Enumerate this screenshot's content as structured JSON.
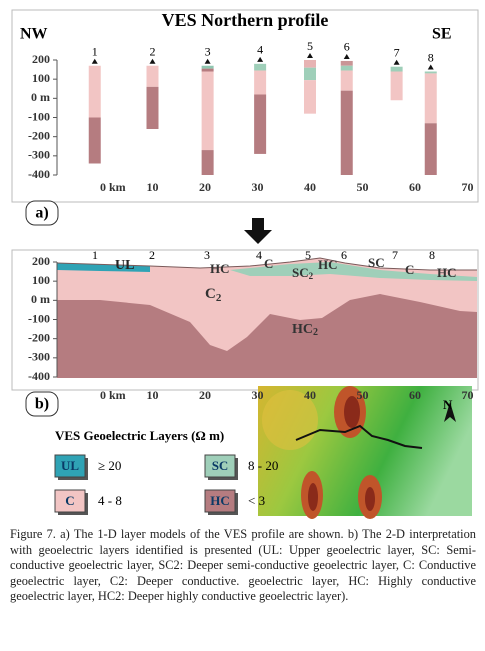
{
  "figure": {
    "panel_a": {
      "title": "VES Northern profile",
      "left_label": "NW",
      "right_label": "SE",
      "panel_label": "a)",
      "ylim": [
        -400,
        200
      ],
      "yticks": [
        200,
        100,
        {
          "value": 0,
          "label": "0 m"
        },
        -100,
        -200,
        -300,
        -400
      ],
      "xlim": [
        -8,
        72
      ],
      "xticks": [
        {
          "value": 0,
          "label": "0 km"
        },
        10,
        20,
        30,
        40,
        50,
        60,
        70
      ],
      "stations": [
        {
          "label": "1",
          "x": -1,
          "layers": [
            {
              "top": 170,
              "bottom": -100,
              "color": "#f2c5c4"
            },
            {
              "top": -100,
              "bottom": -340,
              "color": "#b57c80"
            }
          ]
        },
        {
          "label": "2",
          "x": 10,
          "layers": [
            {
              "top": 170,
              "bottom": 60,
              "color": "#f2c5c4"
            },
            {
              "top": 60,
              "bottom": -160,
              "color": "#b57c80"
            }
          ]
        },
        {
          "label": "3",
          "x": 20.5,
          "layers": [
            {
              "top": 170,
              "bottom": 155,
              "color": "#8fc6b0"
            },
            {
              "top": 155,
              "bottom": 140,
              "color": "#b57c80"
            },
            {
              "top": 140,
              "bottom": -270,
              "color": "#f2c5c4"
            },
            {
              "top": -270,
              "bottom": -400,
              "color": "#b57c80"
            }
          ]
        },
        {
          "label": "4",
          "x": 30.5,
          "layers": [
            {
              "top": 180,
              "bottom": 145,
              "color": "#9fcfb9"
            },
            {
              "top": 145,
              "bottom": 20,
              "color": "#f2c5c4"
            },
            {
              "top": 20,
              "bottom": -290,
              "color": "#b57c80"
            }
          ]
        },
        {
          "label": "5",
          "x": 40,
          "layers": [
            {
              "top": 200,
              "bottom": 160,
              "color": "#e7b3b3"
            },
            {
              "top": 160,
              "bottom": 95,
              "color": "#9fcfb9"
            },
            {
              "top": 95,
              "bottom": -80,
              "color": "#f2c5c4"
            }
          ]
        },
        {
          "label": "6",
          "x": 47,
          "layers": [
            {
              "top": 195,
              "bottom": 170,
              "color": "#c99596"
            },
            {
              "top": 170,
              "bottom": 145,
              "color": "#9fcfb9"
            },
            {
              "top": 145,
              "bottom": 40,
              "color": "#f2c5c4"
            },
            {
              "top": 40,
              "bottom": -400,
              "color": "#b57c80"
            }
          ]
        },
        {
          "label": "7",
          "x": 56.5,
          "layers": [
            {
              "top": 165,
              "bottom": 140,
              "color": "#9fcfb9"
            },
            {
              "top": 140,
              "bottom": -10,
              "color": "#f2c5c4"
            }
          ]
        },
        {
          "label": "8",
          "x": 63,
          "layers": [
            {
              "top": 140,
              "bottom": 130,
              "color": "#9fcfb9"
            },
            {
              "top": 130,
              "bottom": -130,
              "color": "#f2c5c4"
            },
            {
              "top": -130,
              "bottom": -400,
              "color": "#b57c80"
            }
          ]
        }
      ]
    },
    "panel_b": {
      "panel_label": "b)",
      "ylim": [
        -400,
        200
      ],
      "yticks": [
        200,
        100,
        {
          "value": 0,
          "label": "0 m"
        },
        -100,
        -200,
        -300,
        -400
      ],
      "xlim": [
        -8,
        72
      ],
      "xticks": [
        {
          "value": 0,
          "label": "0 km"
        },
        10,
        20,
        30,
        40,
        50,
        60,
        70
      ],
      "station_labels": [
        "1",
        "2",
        "3",
        "4",
        "5",
        "6",
        "7",
        "8"
      ],
      "layer_labels": {
        "ul": "UL",
        "hc3": "HC",
        "c4": "C",
        "sc2": {
          "text": "SC",
          "sub": "2"
        },
        "hc5": "HC",
        "sc": "SC",
        "c7": "C",
        "hc8": "HC",
        "c2": {
          "text": "C",
          "sub": "2"
        },
        "hc2": {
          "text": "HC",
          "sub": "2"
        }
      }
    },
    "legend": {
      "title": "VES Geoelectric Layers (Ω m)",
      "items": [
        {
          "code": "UL",
          "range": "≥ 20",
          "color": "#2fa3b5"
        },
        {
          "code": "SC",
          "range": "8 - 20",
          "color": "#9fcfb9"
        },
        {
          "code": "C",
          "range": "4 - 8",
          "color": "#f2c5c4"
        },
        {
          "code": "HC",
          "range": "< 3",
          "color": "#b57c80"
        }
      ]
    },
    "map": {
      "north": "N"
    },
    "caption": "Figure 7. a) The 1-D layer models of the VES profile are shown. b) The 2-D interpretation with geoelectric layers identified is presented (UL: Upper geoelectric layer, SC: Semi-conductive geoelectric layer, SC2: Deeper semi-conductive geoelectric layer, C: Conductive geoelectric layer, C2: Deeper conductive. geoelectric layer, HC: Highly conductive geoelectric layer, HC2: Deeper highly conductive geoelectric layer)."
  }
}
